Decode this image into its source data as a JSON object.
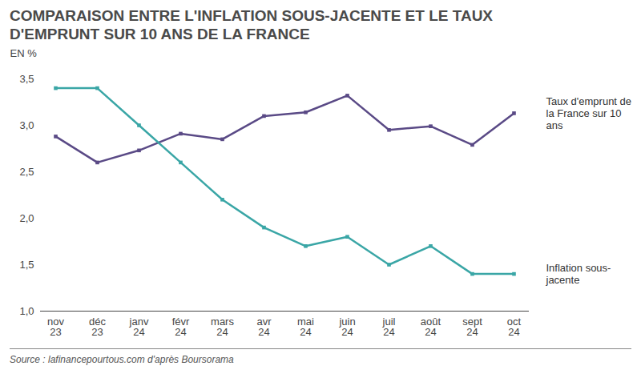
{
  "chart_data": {
    "type": "line",
    "title": "COMPARAISON ENTRE L'INFLATION SOUS-JACENTE ET LE TAUX D'EMPRUNT SUR 10 ANS DE LA FRANCE",
    "y_label": "EN %",
    "source": "Source : lafinancepourtous.com d'après Boursorama",
    "categories": [
      "nov 23",
      "déc 23",
      "janv 24",
      "févr 24",
      "mars 24",
      "avr 24",
      "mai 24",
      "juin 24",
      "juil 24",
      "août 24",
      "sept 24",
      "oct 24"
    ],
    "series": [
      {
        "name": "Taux d'emprunt de la France sur 10 ans",
        "color": "#5a4a86",
        "marker": "square",
        "values": [
          2.88,
          2.6,
          2.73,
          2.91,
          2.85,
          3.1,
          3.14,
          3.32,
          2.95,
          2.99,
          2.79,
          3.13
        ]
      },
      {
        "name": "Inflation sous-jacente",
        "color": "#3aa6a6",
        "marker": "square",
        "values": [
          3.4,
          3.4,
          3.0,
          2.6,
          2.2,
          1.9,
          1.7,
          1.8,
          1.5,
          1.7,
          1.4,
          1.4
        ]
      }
    ],
    "ylim": [
      1.0,
      3.5
    ],
    "yticks": [
      {
        "value": 1.0,
        "label": "1,0"
      },
      {
        "value": 1.5,
        "label": "1,5"
      },
      {
        "value": 2.0,
        "label": "2,0"
      },
      {
        "value": 2.5,
        "label": "2,5"
      },
      {
        "value": 3.0,
        "label": "3,0"
      },
      {
        "value": 3.5,
        "label": "3,5"
      }
    ],
    "grid": false
  }
}
